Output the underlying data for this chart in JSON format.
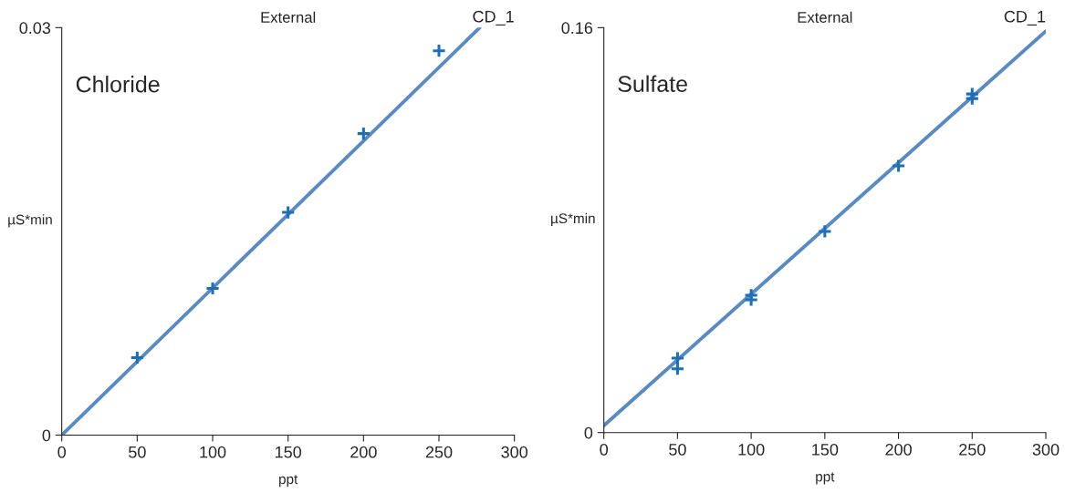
{
  "chart_data": [
    {
      "type": "scatter",
      "title": "External",
      "xlabel": "ppt",
      "ylabel": "µS*min",
      "annotations": [
        "CD_1",
        "Chloride"
      ],
      "xlim": [
        0,
        300
      ],
      "xticks": [
        0,
        50,
        100,
        150,
        200,
        250,
        300
      ],
      "ylim": [
        0,
        0.03
      ],
      "yticks": [
        0,
        0.03
      ],
      "grid": false,
      "legend": false,
      "series": [
        {
          "marker": "cross",
          "color": "#1f6fb5",
          "x": [
            50,
            100,
            150,
            200,
            250
          ],
          "values": [
            0.0057,
            0.0108,
            0.0164,
            0.0222,
            0.0283
          ]
        },
        {
          "type": "line",
          "marker": "none",
          "line_style": "solid",
          "color": "#5b8ac0",
          "x": [
            0,
            277
          ],
          "values": [
            0,
            0.03
          ]
        }
      ]
    },
    {
      "type": "scatter",
      "title": "External",
      "xlabel": "ppt",
      "ylabel": "µS*min",
      "annotations": [
        "CD_1",
        "Sulfate"
      ],
      "xlim": [
        0,
        300
      ],
      "xticks": [
        0,
        50,
        100,
        150,
        200,
        250,
        300
      ],
      "ylim": [
        0,
        0.16
      ],
      "yticks": [
        0,
        0.16
      ],
      "grid": false,
      "legend": false,
      "series": [
        {
          "marker": "cross",
          "color": "#1f6fb5",
          "x": [
            50,
            50,
            100,
            100,
            150,
            200,
            250,
            250
          ],
          "values": [
            0.0294,
            0.0252,
            0.0543,
            0.0525,
            0.0795,
            0.1054,
            0.1338,
            0.132
          ]
        },
        {
          "type": "line",
          "marker": "none",
          "line_style": "solid",
          "color": "#5b8ac0",
          "x": [
            0,
            300
          ],
          "values": [
            0.0028,
            0.1586
          ]
        }
      ]
    }
  ]
}
